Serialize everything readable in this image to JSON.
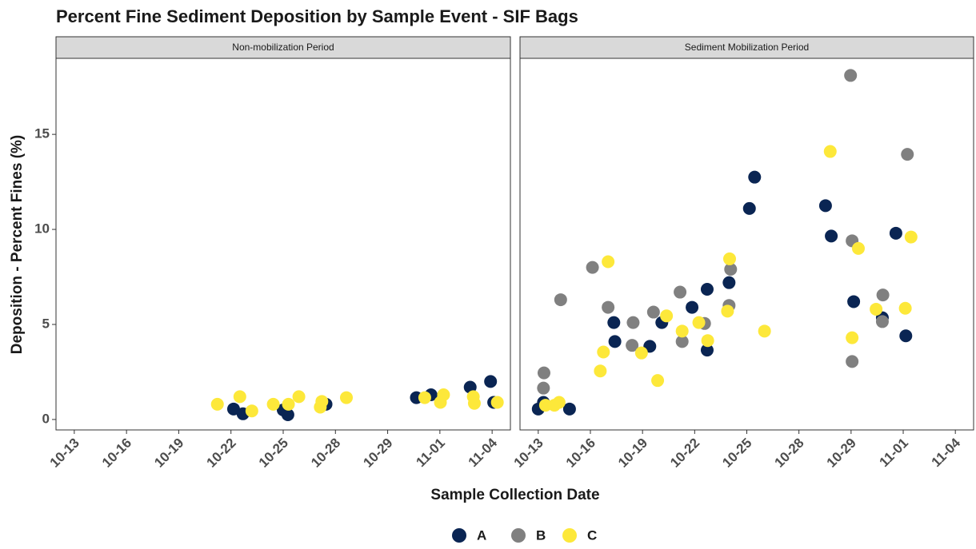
{
  "chart_data": {
    "type": "scatter",
    "title": "Percent Fine Sediment Deposition by Sample Event - SIF Bags",
    "x_label": "Sample Collection Date",
    "y_label": "Deposition - Percent Fines (%)",
    "xlim": [
      0.65,
      9.35
    ],
    "xticks": [
      {
        "value": 1,
        "label": "10-13"
      },
      {
        "value": 2,
        "label": "10-16"
      },
      {
        "value": 3,
        "label": "10-19"
      },
      {
        "value": 4,
        "label": "10-22"
      },
      {
        "value": 5,
        "label": "10-25"
      },
      {
        "value": 6,
        "label": "10-28"
      },
      {
        "value": 7,
        "label": "10-29"
      },
      {
        "value": 8,
        "label": "11-01"
      },
      {
        "value": 9,
        "label": "11-04"
      }
    ],
    "ylim": [
      -0.55,
      19
    ],
    "yticks": [
      0,
      5,
      10,
      15
    ],
    "legend": "bottom",
    "facets": [
      {
        "title": "Non-mobilization Period",
        "series": [
          {
            "name": "A",
            "color": "#0a2553",
            "x": [
              4.05,
              4.23,
              5.0,
              5.09,
              5.82,
              7.55,
              7.83,
              8.58,
              8.97,
              9.03
            ],
            "values": [
              0.55,
              0.3,
              0.5,
              0.25,
              0.8,
              1.15,
              1.3,
              1.7,
              2.0,
              0.9
            ]
          },
          {
            "name": "B",
            "color": "#808080",
            "x": [],
            "values": []
          },
          {
            "name": "C",
            "color": "#fde83a",
            "x": [
              3.74,
              4.17,
              4.4,
              4.81,
              5.1,
              5.3,
              5.71,
              5.74,
              6.21,
              7.71,
              8.01,
              8.07,
              8.64,
              8.66,
              9.1
            ],
            "values": [
              0.8,
              1.2,
              0.45,
              0.8,
              0.8,
              1.2,
              0.65,
              0.95,
              1.15,
              1.15,
              0.9,
              1.3,
              1.2,
              0.85,
              0.9
            ]
          }
        ]
      },
      {
        "title": "Sediment Mobilization Period",
        "series": [
          {
            "name": "A",
            "color": "#0a2553",
            "x": [
              1.0,
              1.1,
              1.6,
              2.45,
              2.47,
              3.14,
              3.37,
              3.95,
              4.24,
              4.24,
              4.66,
              5.05,
              5.15,
              6.51,
              6.62,
              7.05,
              7.6,
              7.86,
              8.05
            ],
            "values": [
              0.55,
              0.9,
              0.55,
              5.1,
              4.1,
              3.85,
              5.1,
              5.9,
              6.85,
              3.65,
              7.2,
              11.1,
              12.75,
              11.25,
              9.65,
              6.2,
              5.35,
              9.8,
              4.4
            ]
          },
          {
            "name": "B",
            "color": "#808080",
            "x": [
              1.1,
              1.11,
              1.43,
              2.04,
              2.34,
              2.82,
              2.8,
              3.21,
              3.72,
              3.76,
              4.19,
              4.66,
              4.69,
              6.99,
              7.02,
              7.02,
              7.61,
              7.6,
              8.08
            ],
            "values": [
              1.65,
              2.45,
              6.3,
              8.0,
              5.9,
              5.1,
              3.9,
              5.65,
              6.7,
              4.1,
              5.05,
              6.0,
              7.9,
              18.1,
              9.4,
              3.05,
              6.55,
              5.15,
              13.95
            ]
          },
          {
            "name": "C",
            "color": "#fde83a",
            "x": [
              1.14,
              1.31,
              1.4,
              2.19,
              2.25,
              2.34,
              2.98,
              3.29,
              3.46,
              3.76,
              4.08,
              4.25,
              4.63,
              4.67,
              5.34,
              6.6,
              7.02,
              7.14,
              7.48,
              8.04,
              8.15
            ],
            "values": [
              0.75,
              0.75,
              0.9,
              2.55,
              3.55,
              8.3,
              3.5,
              2.05,
              5.45,
              4.65,
              5.1,
              4.15,
              5.7,
              8.45,
              4.65,
              14.1,
              4.3,
              9.0,
              5.8,
              5.85,
              9.6
            ]
          }
        ]
      }
    ]
  }
}
